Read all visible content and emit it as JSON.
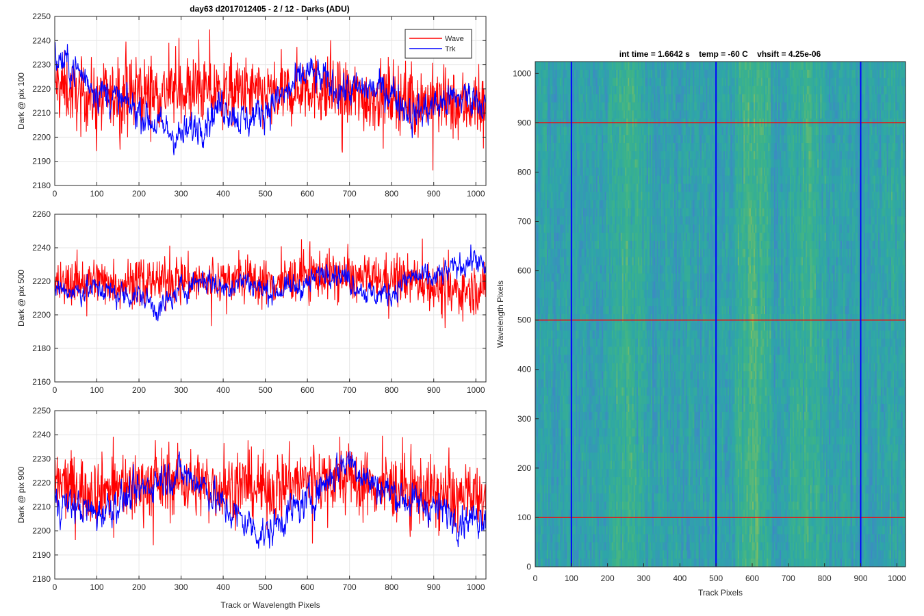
{
  "figure": {
    "left_title": "day63 d2017012405 - 2 / 12 - Darks (ADU)",
    "right_title": "int time = 1.6642 s    temp = -60 C    vhsift = 4.25e-06"
  },
  "colors": {
    "wave": "#ff0000",
    "trk": "#0000ff",
    "grid": "#e6e6e6",
    "axes": "#262626"
  },
  "chart_data": [
    {
      "type": "line",
      "ylabel": "Dark @ pix 100",
      "xlabel": "",
      "xlim": [
        0,
        1024
      ],
      "ylim": [
        2180,
        2250
      ],
      "xticks": [
        0,
        100,
        200,
        300,
        400,
        500,
        600,
        700,
        800,
        900,
        1000
      ],
      "yticks": [
        2180,
        2190,
        2200,
        2210,
        2220,
        2230,
        2240,
        2250
      ],
      "grid": true,
      "legend": {
        "placement": "top-right",
        "entries": [
          "Wave",
          "Trk"
        ]
      },
      "series": [
        {
          "name": "Wave",
          "color": "#ff0000",
          "x": [
            0,
            50,
            100,
            150,
            200,
            250,
            300,
            350,
            400,
            450,
            500,
            550,
            600,
            650,
            700,
            750,
            800,
            850,
            900,
            950,
            1000,
            1023
          ],
          "values": [
            2222,
            2218,
            2216,
            2217,
            2219,
            2218,
            2220,
            2219,
            2218,
            2219,
            2217,
            2218,
            2222,
            2218,
            2217,
            2216,
            2218,
            2215,
            2215,
            2213,
            2214,
            2213
          ]
        },
        {
          "name": "Trk",
          "color": "#0000ff",
          "x": [
            0,
            50,
            100,
            150,
            200,
            250,
            300,
            350,
            400,
            450,
            500,
            550,
            600,
            650,
            700,
            750,
            800,
            850,
            900,
            950,
            1000,
            1023
          ],
          "values": [
            2233,
            2228,
            2220,
            2215,
            2211,
            2204,
            2200,
            2206,
            2214,
            2206,
            2212,
            2218,
            2227,
            2222,
            2219,
            2220,
            2219,
            2209,
            2213,
            2216,
            2217,
            2213
          ]
        }
      ]
    },
    {
      "type": "line",
      "ylabel": "Dark @ pix 500",
      "xlabel": "",
      "xlim": [
        0,
        1024
      ],
      "ylim": [
        2160,
        2260
      ],
      "xticks": [
        0,
        100,
        200,
        300,
        400,
        500,
        600,
        700,
        800,
        900,
        1000
      ],
      "yticks": [
        2160,
        2180,
        2200,
        2220,
        2240,
        2260
      ],
      "grid": true,
      "series": [
        {
          "name": "Wave",
          "color": "#ff0000",
          "x": [
            0,
            50,
            100,
            150,
            200,
            250,
            300,
            350,
            400,
            450,
            500,
            550,
            600,
            650,
            700,
            750,
            800,
            850,
            900,
            950,
            1000,
            1023
          ],
          "values": [
            2216,
            2220,
            2221,
            2219,
            2220,
            2220,
            2222,
            2219,
            2221,
            2221,
            2219,
            2220,
            2225,
            2224,
            2222,
            2221,
            2222,
            2221,
            2217,
            2214,
            2215,
            2216
          ]
        },
        {
          "name": "Trk",
          "color": "#0000ff",
          "x": [
            0,
            50,
            100,
            150,
            200,
            250,
            300,
            350,
            400,
            450,
            500,
            550,
            600,
            650,
            700,
            750,
            800,
            850,
            900,
            950,
            1000,
            1023
          ],
          "values": [
            2216,
            2214,
            2216,
            2212,
            2212,
            2203,
            2215,
            2222,
            2216,
            2221,
            2214,
            2215,
            2218,
            2228,
            2221,
            2212,
            2213,
            2223,
            2221,
            2228,
            2234,
            2225
          ]
        }
      ]
    },
    {
      "type": "line",
      "ylabel": "Dark @ pix 900",
      "xlabel": "Track or Wavelength Pixels",
      "xlim": [
        0,
        1024
      ],
      "ylim": [
        2180,
        2250
      ],
      "xticks": [
        0,
        100,
        200,
        300,
        400,
        500,
        600,
        700,
        800,
        900,
        1000
      ],
      "yticks": [
        2180,
        2190,
        2200,
        2210,
        2220,
        2230,
        2240,
        2250
      ],
      "grid": true,
      "series": [
        {
          "name": "Wave",
          "color": "#ff0000",
          "x": [
            0,
            50,
            100,
            150,
            200,
            250,
            300,
            350,
            400,
            450,
            500,
            550,
            600,
            650,
            700,
            750,
            800,
            850,
            900,
            950,
            1000,
            1023
          ],
          "values": [
            2220,
            2218,
            2217,
            2218,
            2219,
            2220,
            2221,
            2219,
            2218,
            2219,
            2217,
            2220,
            2221,
            2222,
            2221,
            2219,
            2218,
            2217,
            2216,
            2214,
            2213,
            2214
          ]
        },
        {
          "name": "Trk",
          "color": "#0000ff",
          "x": [
            0,
            50,
            100,
            150,
            200,
            250,
            300,
            350,
            400,
            450,
            500,
            550,
            600,
            650,
            700,
            750,
            800,
            850,
            900,
            950,
            1000,
            1023
          ],
          "values": [
            2212,
            2210,
            2207,
            2212,
            2216,
            2222,
            2224,
            2220,
            2210,
            2204,
            2198,
            2207,
            2212,
            2222,
            2230,
            2220,
            2216,
            2212,
            2210,
            2206,
            2205,
            2208
          ]
        }
      ]
    },
    {
      "type": "heatmap",
      "xlabel": "Track Pixels",
      "ylabel": "Wavelength Pixels",
      "xlim": [
        0,
        1024
      ],
      "ylim": [
        0,
        1024
      ],
      "xticks": [
        0,
        100,
        200,
        300,
        400,
        500,
        600,
        700,
        800,
        900,
        1000
      ],
      "yticks": [
        0,
        100,
        200,
        300,
        400,
        500,
        600,
        700,
        800,
        900,
        1000
      ],
      "colormap": [
        "#3d89c4",
        "#2ea6a8",
        "#3bb38a",
        "#7cbd66",
        "#bcbe4c"
      ],
      "bright_columns": [
        {
          "from": 550,
          "to": 650,
          "level": 0.75
        },
        {
          "from": 200,
          "to": 300,
          "level": 0.55
        },
        {
          "from": 700,
          "to": 800,
          "level": 0.5
        },
        {
          "from": 950,
          "to": 1024,
          "level": 0.2
        }
      ],
      "vertical_markers": {
        "color": "#0000ff",
        "x": [
          100,
          500,
          900
        ]
      },
      "horizontal_markers": {
        "color": "#ff0000",
        "y": [
          100,
          500,
          900
        ]
      }
    }
  ]
}
